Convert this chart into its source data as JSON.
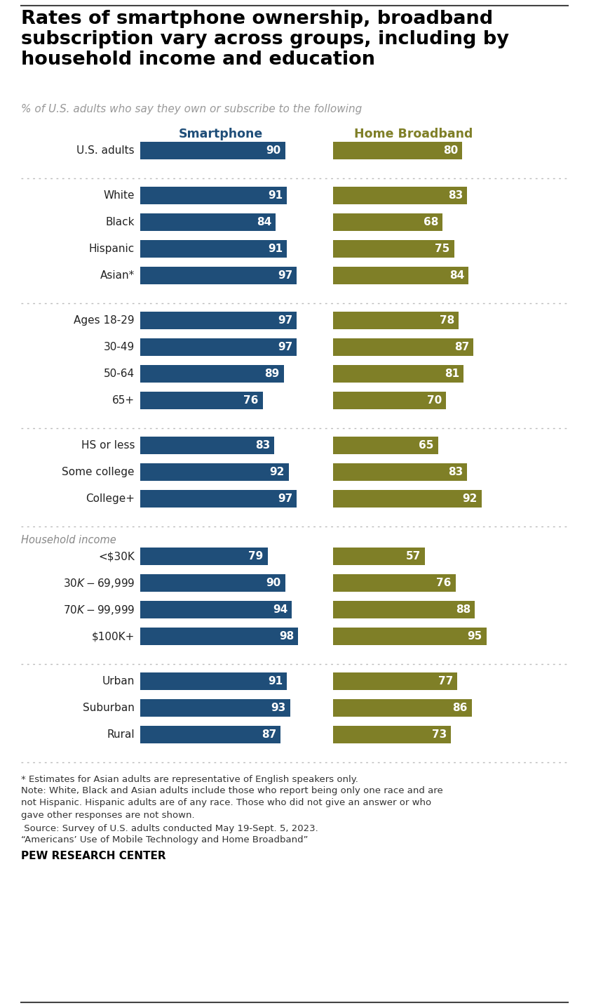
{
  "title": "Rates of smartphone ownership, broadband\nsubscription vary across groups, including by\nhousehold income and education",
  "subtitle": "% of U.S. adults who say they own or subscribe to the following",
  "col1_label": "Smartphone",
  "col2_label": "Home Broadband",
  "col1_color": "#1F4E79",
  "col2_color": "#7F7F27",
  "bar_text_color": "#FFFFFF",
  "label_color": "#222222",
  "sections": [
    {
      "section_label": null,
      "rows": [
        {
          "label": "U.S. adults",
          "smartphone": 90,
          "broadband": 80
        }
      ]
    },
    {
      "section_label": null,
      "rows": [
        {
          "label": "White",
          "smartphone": 91,
          "broadband": 83
        },
        {
          "label": "Black",
          "smartphone": 84,
          "broadband": 68
        },
        {
          "label": "Hispanic",
          "smartphone": 91,
          "broadband": 75
        },
        {
          "label": "Asian*",
          "smartphone": 97,
          "broadband": 84
        }
      ]
    },
    {
      "section_label": null,
      "rows": [
        {
          "label": "Ages 18-29",
          "smartphone": 97,
          "broadband": 78
        },
        {
          "label": "30-49",
          "smartphone": 97,
          "broadband": 87
        },
        {
          "label": "50-64",
          "smartphone": 89,
          "broadband": 81
        },
        {
          "label": "65+",
          "smartphone": 76,
          "broadband": 70
        }
      ]
    },
    {
      "section_label": null,
      "rows": [
        {
          "label": "HS or less",
          "smartphone": 83,
          "broadband": 65
        },
        {
          "label": "Some college",
          "smartphone": 92,
          "broadband": 83
        },
        {
          "label": "College+",
          "smartphone": 97,
          "broadband": 92
        }
      ]
    },
    {
      "section_label": "Household income",
      "rows": [
        {
          "label": "<$30K",
          "smartphone": 79,
          "broadband": 57
        },
        {
          "label": "$30K-$69,999",
          "smartphone": 90,
          "broadband": 76
        },
        {
          "label": "$70K-$99,999",
          "smartphone": 94,
          "broadband": 88
        },
        {
          "label": "$100K+",
          "smartphone": 98,
          "broadband": 95
        }
      ]
    },
    {
      "section_label": null,
      "rows": [
        {
          "label": "Urban",
          "smartphone": 91,
          "broadband": 77
        },
        {
          "label": "Suburban",
          "smartphone": 93,
          "broadband": 86
        },
        {
          "label": "Rural",
          "smartphone": 87,
          "broadband": 73
        }
      ]
    }
  ],
  "footnote1": "* Estimates for Asian adults are representative of English speakers only.",
  "footnote2": "Note: White, Black and Asian adults include those who report being only one race and are\nnot Hispanic. Hispanic adults are of any race. Those who did not give an answer or who\ngave other responses are not shown.",
  "footnote3": " Source: Survey of U.S. adults conducted May 19-Sept. 5, 2023.",
  "footnote4": "“Americans’ Use of Mobile Technology and Home Broadband”",
  "source_label": "PEW RESEARCH CENTER",
  "bg_color": "#FFFFFF",
  "title_color": "#000000",
  "subtitle_color": "#999999",
  "section_label_color": "#888888",
  "col1_header_color": "#1F4E79",
  "col2_header_color": "#7F7F27"
}
